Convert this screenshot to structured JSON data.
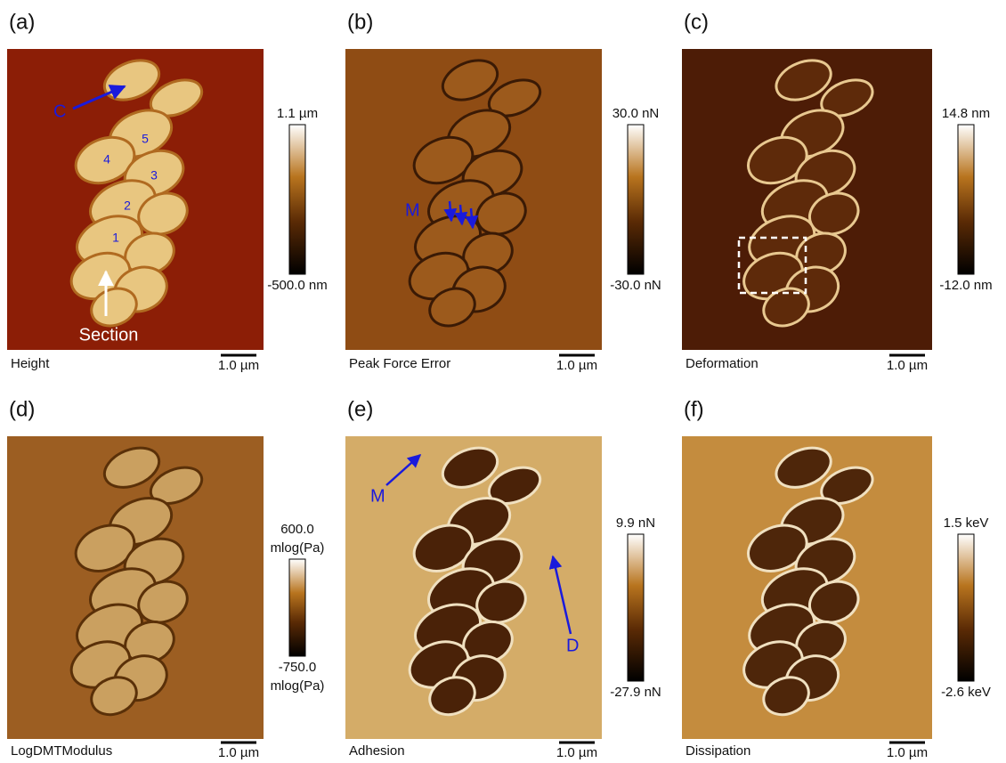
{
  "panels": [
    {
      "label": "(a)",
      "channel": "Height",
      "scale_bar": "1.0 µm",
      "colorbar": {
        "max": [
          "1.1 µm"
        ],
        "min": [
          "-500.0 nm"
        ]
      },
      "annotations": [
        "C",
        "5",
        "4",
        "3",
        "2",
        "1",
        "Section"
      ]
    },
    {
      "label": "(b)",
      "channel": "Peak Force Error",
      "scale_bar": "1.0 µm",
      "colorbar": {
        "max": [
          "30.0 nN"
        ],
        "min": [
          "-30.0 nN"
        ]
      },
      "annotations": [
        "M"
      ]
    },
    {
      "label": "(c)",
      "channel": "Deformation",
      "scale_bar": "1.0 µm",
      "colorbar": {
        "max": [
          "14.8 nm"
        ],
        "min": [
          "-12.0 nm"
        ]
      }
    },
    {
      "label": "(d)",
      "channel": "LogDMTModulus",
      "scale_bar": "1.0 µm",
      "colorbar": {
        "max": [
          "600.0",
          "mlog(Pa)"
        ],
        "min": [
          "-750.0",
          "mlog(Pa)"
        ]
      }
    },
    {
      "label": "(e)",
      "channel": "Adhesion",
      "scale_bar": "1.0 µm",
      "colorbar": {
        "max": [
          "9.9 nN"
        ],
        "min": [
          "-27.9 nN"
        ]
      },
      "annotations": [
        "M",
        "D"
      ]
    },
    {
      "label": "(f)",
      "channel": "Dissipation",
      "scale_bar": "1.0 µm",
      "colorbar": {
        "max": [
          "1.5 keV"
        ],
        "min": [
          "-2.6 keV"
        ]
      }
    }
  ]
}
